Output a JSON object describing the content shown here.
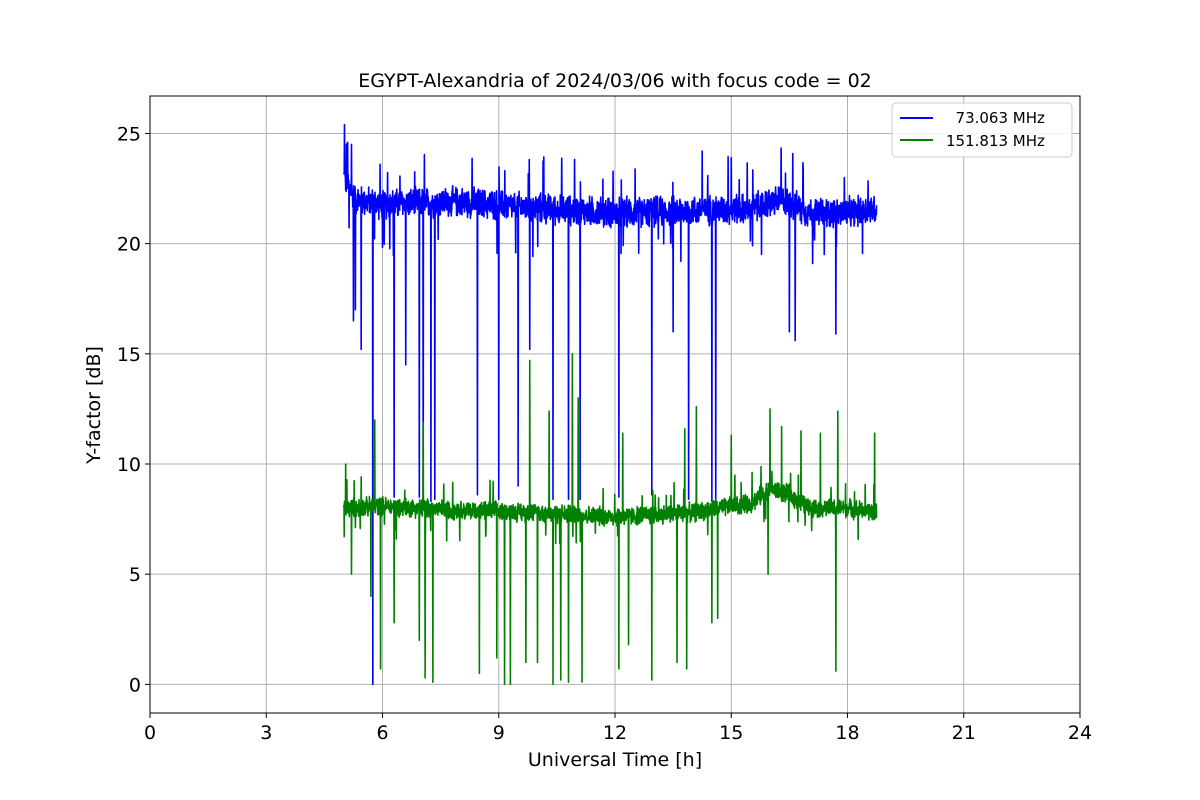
{
  "chart_data": {
    "type": "line",
    "title": "EGYPT-Alexandria of 2024/03/06 with focus code = 02",
    "xlabel": "Universal Time [h]",
    "ylabel": "Y-factor [dB]",
    "xlim": [
      0,
      24
    ],
    "ylim": [
      -1.3,
      26.7
    ],
    "xticks": [
      "0",
      "3",
      "6",
      "9",
      "12",
      "15",
      "18",
      "21",
      "24"
    ],
    "yticks": [
      "0",
      "5",
      "10",
      "15",
      "20",
      "25"
    ],
    "grid": true,
    "legend_position": "top-right",
    "series": [
      {
        "name": "  73.063 MHz",
        "color": "#0000ff",
        "x_range": [
          5.0,
          18.75
        ],
        "baseline": [
          [
            5.0,
            23.0
          ],
          [
            5.3,
            22.0
          ],
          [
            6.0,
            21.8
          ],
          [
            8.0,
            21.9
          ],
          [
            10.0,
            21.6
          ],
          [
            12.0,
            21.4
          ],
          [
            14.0,
            21.5
          ],
          [
            15.5,
            21.6
          ],
          [
            16.3,
            22.0
          ],
          [
            17.0,
            21.4
          ],
          [
            18.0,
            21.4
          ],
          [
            18.75,
            21.6
          ]
        ],
        "noise": 0.8,
        "spikes_up": [
          [
            5.02,
            25.4
          ],
          [
            5.1,
            24.6
          ],
          [
            5.2,
            24.5
          ],
          [
            14.25,
            24.2
          ],
          [
            16.4,
            23.2
          ]
        ],
        "dips": [
          [
            5.25,
            16.5
          ],
          [
            5.3,
            17.0
          ],
          [
            5.45,
            15.2
          ],
          [
            5.75,
            0.0
          ],
          [
            6.3,
            8.5
          ],
          [
            6.6,
            14.5
          ],
          [
            6.95,
            8.5
          ],
          [
            7.05,
            8.2
          ],
          [
            7.25,
            8.3
          ],
          [
            7.35,
            8.4
          ],
          [
            8.45,
            8.6
          ],
          [
            9.0,
            8.4
          ],
          [
            9.5,
            9.0
          ],
          [
            9.8,
            15.2
          ],
          [
            10.4,
            8.4
          ],
          [
            10.8,
            8.4
          ],
          [
            11.1,
            8.4
          ],
          [
            12.1,
            8.5
          ],
          [
            12.95,
            8.6
          ],
          [
            13.5,
            16.0
          ],
          [
            13.7,
            8.5
          ],
          [
            13.9,
            8.4
          ],
          [
            14.5,
            8.3
          ],
          [
            14.6,
            8.4
          ],
          [
            16.5,
            16.0
          ],
          [
            16.65,
            15.6
          ],
          [
            17.1,
            19.1
          ],
          [
            17.7,
            15.9
          ]
        ]
      },
      {
        "name": "151.813 MHz",
        "color": "#008000",
        "x_range": [
          5.0,
          18.75
        ],
        "baseline": [
          [
            5.0,
            8.0
          ],
          [
            6.0,
            8.1
          ],
          [
            8.0,
            7.9
          ],
          [
            10.0,
            7.8
          ],
          [
            12.0,
            7.6
          ],
          [
            14.0,
            7.8
          ],
          [
            15.5,
            8.2
          ],
          [
            16.0,
            8.9
          ],
          [
            16.5,
            8.6
          ],
          [
            17.0,
            8.0
          ],
          [
            18.0,
            8.0
          ],
          [
            18.75,
            7.8
          ]
        ],
        "noise": 0.5,
        "spikes_up": [
          [
            5.05,
            10.0
          ],
          [
            5.8,
            12.0
          ],
          [
            7.05,
            11.9
          ],
          [
            7.3,
            11.7
          ],
          [
            8.5,
            12.5
          ],
          [
            9.8,
            14.7
          ],
          [
            10.3,
            12.4
          ],
          [
            10.9,
            15.0
          ],
          [
            11.05,
            13.0
          ],
          [
            12.2,
            11.4
          ],
          [
            13.8,
            11.6
          ],
          [
            14.1,
            12.6
          ],
          [
            15.0,
            11.3
          ],
          [
            16.0,
            12.5
          ],
          [
            16.3,
            11.7
          ],
          [
            16.8,
            11.5
          ],
          [
            17.3,
            11.4
          ],
          [
            17.75,
            12.4
          ],
          [
            18.7,
            11.4
          ]
        ],
        "dips": [
          [
            5.2,
            5.0
          ],
          [
            5.7,
            4.0
          ],
          [
            5.95,
            0.7
          ],
          [
            6.3,
            2.8
          ],
          [
            6.95,
            2.0
          ],
          [
            7.1,
            0.3
          ],
          [
            7.3,
            0.1
          ],
          [
            8.5,
            0.5
          ],
          [
            8.95,
            1.2
          ],
          [
            9.15,
            0.0
          ],
          [
            9.3,
            0.0
          ],
          [
            9.7,
            1.0
          ],
          [
            10.0,
            1.0
          ],
          [
            10.4,
            0.0
          ],
          [
            10.6,
            0.2
          ],
          [
            10.8,
            0.1
          ],
          [
            11.0,
            0.3
          ],
          [
            11.15,
            0.1
          ],
          [
            12.1,
            0.7
          ],
          [
            12.35,
            1.8
          ],
          [
            12.95,
            0.2
          ],
          [
            13.6,
            1.0
          ],
          [
            13.85,
            0.7
          ],
          [
            14.5,
            2.8
          ],
          [
            14.65,
            3.0
          ],
          [
            15.95,
            5.0
          ],
          [
            17.7,
            0.6
          ]
        ]
      }
    ]
  }
}
